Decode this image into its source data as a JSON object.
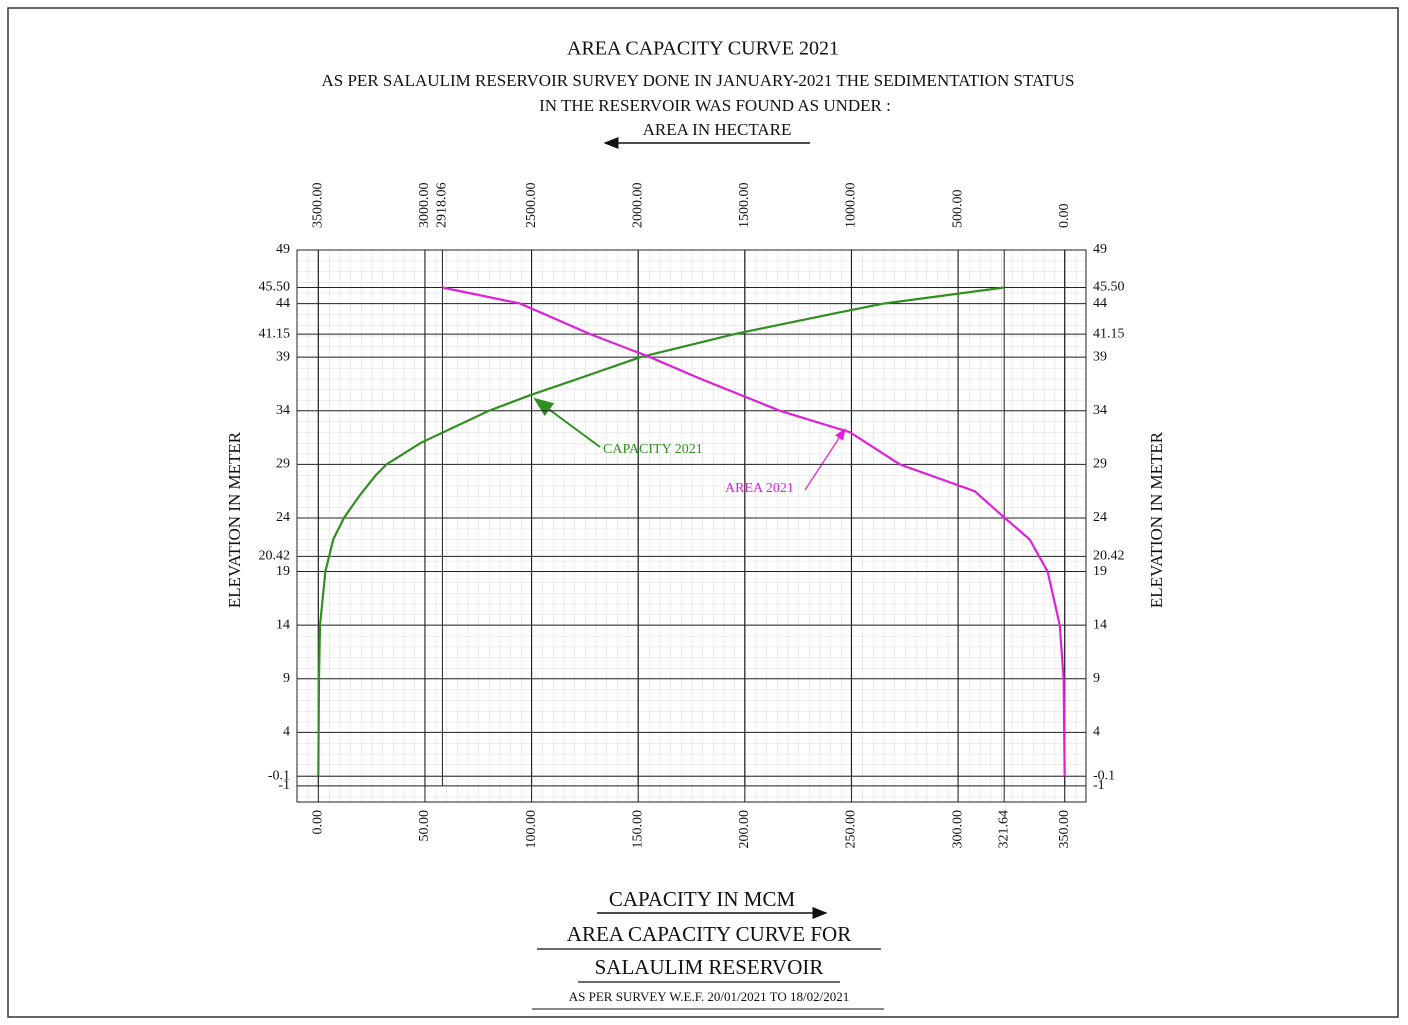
{
  "chart_data": {
    "type": "line",
    "title": "AREA CAPACITY  CURVE  2021",
    "subtitle": [
      "AS PER SALAULIM RESERVOIR SURVEY DONE IN JANUARY-2021 THE SEDIMENTATION STATUS",
      "IN THE RESERVOIR WAS FOUND AS UNDER :"
    ],
    "x2_label": "AREA  IN HECTARE",
    "xlabel": "CAPACITY  IN  MCM",
    "ylabel": "ELEVATION  IN  METER",
    "footer": [
      "AREA  CAPACITY CURVE FOR",
      "SALAULIM RESERVOIR",
      "AS PER SURVEY W.E.F.  20/01/2021 TO 18/02/2021"
    ],
    "xlim": [
      -10,
      360
    ],
    "xticks": [
      {
        "value": 0,
        "label": "0.00"
      },
      {
        "value": 50,
        "label": "50.00"
      },
      {
        "value": 100,
        "label": "100.00"
      },
      {
        "value": 150,
        "label": "150.00"
      },
      {
        "value": 200,
        "label": "200.00"
      },
      {
        "value": 250,
        "label": "250.00"
      },
      {
        "value": 300,
        "label": "300.00"
      },
      {
        "value": 321.64,
        "label": "321.64"
      },
      {
        "value": 350,
        "label": "350.00"
      }
    ],
    "x2lim": [
      3600,
      -100
    ],
    "x2ticks": [
      {
        "value": 3500,
        "label": "3500.00"
      },
      {
        "value": 3000,
        "label": "3000.00"
      },
      {
        "value": 2918.06,
        "label": "2918.06"
      },
      {
        "value": 2500,
        "label": "2500.00"
      },
      {
        "value": 2000,
        "label": "2000.00"
      },
      {
        "value": 1500,
        "label": "1500.00"
      },
      {
        "value": 1000,
        "label": "1000.00"
      },
      {
        "value": 500,
        "label": "500.00"
      },
      {
        "value": 0,
        "label": "0.00"
      }
    ],
    "ylim": [
      -2.5,
      49
    ],
    "yticks": [
      49,
      {
        "value": 45.5,
        "label": "45.50"
      },
      44,
      41.15,
      39,
      34,
      29,
      24,
      20.42,
      19,
      14,
      9,
      4,
      -0.1,
      -1
    ],
    "grid": true,
    "series": [
      {
        "name": "CAPACITY 2021",
        "color": "#2f8f1f",
        "axis": "x",
        "x": [
          0,
          0.3,
          0.8,
          3.3,
          7,
          12,
          19,
          27,
          32,
          48,
          80,
          100,
          122,
          151,
          195,
          240,
          265,
          321.64
        ],
        "values": [
          -0.1,
          9,
          14,
          19,
          22,
          24,
          26,
          28,
          29,
          31,
          34,
          35.5,
          37,
          39,
          41.15,
          43,
          44,
          45.5
        ]
      },
      {
        "name": "AREA 2021",
        "color": "#e020d8",
        "axis": "x2",
        "x": [
          0,
          5,
          23,
          80,
          164,
          281,
          422,
          773,
          1007,
          1335,
          1710,
          1944,
          2225,
          2553,
          2918.06
        ],
        "values": [
          -0.1,
          9,
          14,
          19,
          22,
          24,
          26.5,
          29,
          32,
          34,
          37,
          39,
          41.15,
          44,
          45.5
        ]
      }
    ]
  }
}
